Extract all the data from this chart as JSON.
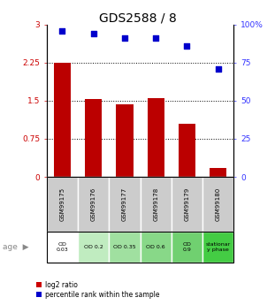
{
  "title": "GDS2588 / 8",
  "samples": [
    "GSM99175",
    "GSM99176",
    "GSM99177",
    "GSM99178",
    "GSM99179",
    "GSM99180"
  ],
  "log2_ratio": [
    2.25,
    1.53,
    1.42,
    1.55,
    1.05,
    0.18
  ],
  "percentile_rank": [
    96,
    94,
    91,
    91,
    86,
    71
  ],
  "bar_color": "#bb0000",
  "dot_color": "#0000cc",
  "ylim_left": [
    0,
    3
  ],
  "ylim_right": [
    0,
    100
  ],
  "yticks_left": [
    0,
    0.75,
    1.5,
    2.25,
    3
  ],
  "ytick_labels_left": [
    "0",
    "0.75",
    "1.5",
    "2.25",
    "3"
  ],
  "yticks_right": [
    0,
    25,
    50,
    75,
    100
  ],
  "ytick_labels_right": [
    "0",
    "25",
    "50",
    "75",
    "100%"
  ],
  "hlines": [
    0.75,
    1.5,
    2.25
  ],
  "age_labels": [
    "OD\n0.03",
    "OD 0.2",
    "OD 0.35",
    "OD 0.6",
    "OD\n0.9",
    "stationar\ny phase"
  ],
  "age_bg_colors": [
    "#ffffff",
    "#c0ecc0",
    "#a0e0a0",
    "#88d888",
    "#70d070",
    "#44cc44"
  ],
  "sample_bg_color": "#cccccc",
  "left_color": "#cc0000",
  "right_color": "#3333ff",
  "legend_bar_color": "#cc0000",
  "legend_dot_color": "#0000cc"
}
